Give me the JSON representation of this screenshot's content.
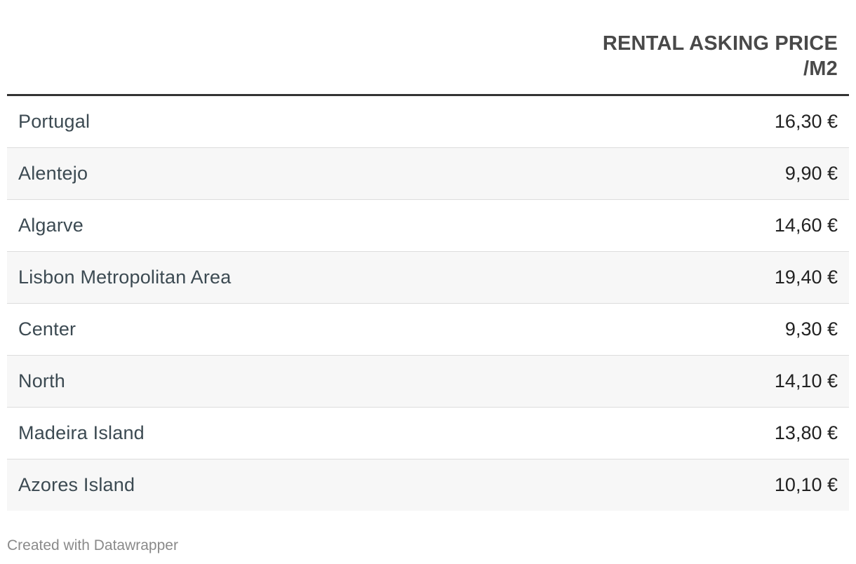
{
  "table": {
    "column_header": "RENTAL ASKING PRICE /M2",
    "rows": [
      {
        "region": "Portugal",
        "price": "16,30 €"
      },
      {
        "region": "Alentejo",
        "price": "9,90 €"
      },
      {
        "region": "Algarve",
        "price": "14,60 €"
      },
      {
        "region": "Lisbon Metropolitan Area",
        "price": "19,40 €"
      },
      {
        "region": "Center",
        "price": "9,30 €"
      },
      {
        "region": "North",
        "price": "14,10 €"
      },
      {
        "region": "Madeira Island",
        "price": "13,80 €"
      },
      {
        "region": "Azores Island",
        "price": "10,10 €"
      }
    ]
  },
  "footer": {
    "credit": "Created with Datawrapper"
  },
  "chart_data": {
    "type": "table",
    "columns": [
      "",
      "RENTAL ASKING PRICE /M2"
    ],
    "categories": [
      "Portugal",
      "Alentejo",
      "Algarve",
      "Lisbon Metropolitan Area",
      "Center",
      "North",
      "Madeira Island",
      "Azores Island"
    ],
    "values": [
      16.3,
      9.9,
      14.6,
      19.4,
      9.3,
      14.1,
      13.8,
      10.1
    ],
    "unit": "€",
    "colors": {
      "header_text": "#494949",
      "label_text": "#3c4a52",
      "value_text": "#222222",
      "stripe": "#f7f7f7",
      "header_rule": "#333333",
      "row_rule": "#dddddd"
    }
  }
}
